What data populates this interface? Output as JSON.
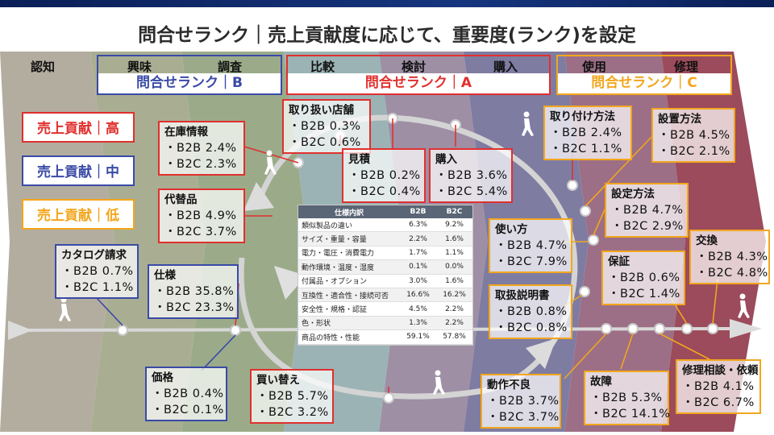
{
  "title": "問合せランク｜売上貢献度に応じて、重要度(ランク)を設定",
  "stages": {
    "ninchi": "認知",
    "kyomi": "興味",
    "chosa": "調査",
    "hikaku": "比較",
    "kento": "検討",
    "konyu": "購入",
    "shiyo": "使用",
    "shuri": "修理"
  },
  "ranks": {
    "b": "問合せランク｜B",
    "a": "問合せランク｜A",
    "c": "問合せランク｜C"
  },
  "legend": {
    "high": "売上貢献｜高",
    "mid": "売上貢献｜中",
    "low": "売上貢献｜低"
  },
  "colors": {
    "high": "#e0302e",
    "mid": "#3a4aa6",
    "low": "#f2a61d"
  },
  "items": {
    "catalog": {
      "title": "カタログ請求",
      "b2b": "・B2B  0.7%",
      "b2c": "・B2C  1.1%"
    },
    "zaiko": {
      "title": "在庫情報",
      "b2b": "・B2B  2.4%",
      "b2c": "・B2C  2.3%"
    },
    "daitai": {
      "title": "代替品",
      "b2b": "・B2B  4.9%",
      "b2c": "・B2C  3.7%"
    },
    "shiyou": {
      "title": "仕様",
      "b2b": "・B2B  35.8%",
      "b2c": "・B2C  23.3%"
    },
    "kakaku": {
      "title": "価格",
      "b2b": "・B2B  0.4%",
      "b2c": "・B2C  0.1%"
    },
    "tenpo": {
      "title": "取り扱い店舗",
      "b2b": "・B2B  0.3%",
      "b2c": "・B2C  0.6%"
    },
    "mitsumori": {
      "title": "見積",
      "b2b": "・B2B  0.2%",
      "b2c": "・B2C  0.4%"
    },
    "konyu": {
      "title": "購入",
      "b2b": "・B2B  3.6%",
      "b2c": "・B2C  5.4%"
    },
    "kaikae": {
      "title": "買い替え",
      "b2b": "・B2B  5.7%",
      "b2c": "・B2C  3.2%"
    },
    "toritsuke": {
      "title": "取り付け方法",
      "b2b": "・B2B  2.4%",
      "b2c": "・B2C  1.1%"
    },
    "secchi": {
      "title": "設置方法",
      "b2b": "・B2B  4.5%",
      "b2c": "・B2C  2.1%"
    },
    "settei": {
      "title": "設定方法",
      "b2b": "・B2B  4.7%",
      "b2c": "・B2C  2.9%"
    },
    "tsukaikata": {
      "title": "使い方",
      "b2b": "・B2B  4.7%",
      "b2c": "・B2C  7.9%"
    },
    "hosho": {
      "title": "保証",
      "b2b": "・B2B  0.6%",
      "b2c": "・B2C  1.4%"
    },
    "kokan": {
      "title": "交換",
      "b2b": "・B2B  4.3%",
      "b2c": "・B2C  4.8%"
    },
    "setsumeisho": {
      "title": "取扱説明書",
      "b2b": "・B2B  0.8%",
      "b2c": "・B2C  0.8%"
    },
    "dosa": {
      "title": "動作不良",
      "b2b": "・B2B  3.7%",
      "b2c": "・B2C  3.7%"
    },
    "kosho": {
      "title": "故障",
      "b2b": "・B2B  5.3%",
      "b2c": "・B2C  14.1%"
    },
    "shurisodan": {
      "title": "修理相談・依頼",
      "b2b": "・B2B  4.1%",
      "b2c": "・B2C  6.7%"
    }
  },
  "table": {
    "headers": [
      "仕様内訳",
      "B2B",
      "B2C"
    ],
    "rows": [
      [
        "類似製品の違い",
        "6.3%",
        "9.2%"
      ],
      [
        "サイズ・重量・容量",
        "2.2%",
        "1.6%"
      ],
      [
        "電力・電圧・消費電力",
        "1.7%",
        "1.1%"
      ],
      [
        "動作環境・温度・湿度",
        "0.1%",
        "0.0%"
      ],
      [
        "付属品・オプション",
        "3.0%",
        "1.6%"
      ],
      [
        "互換性・適合性・接続可否",
        "16.6%",
        "16.2%"
      ],
      [
        "安全性・規格・認証",
        "4.5%",
        "2.2%"
      ],
      [
        "色・形状",
        "1.3%",
        "2.2%"
      ],
      [
        "商品の特性・性能",
        "59.1%",
        "57.8%"
      ]
    ]
  }
}
